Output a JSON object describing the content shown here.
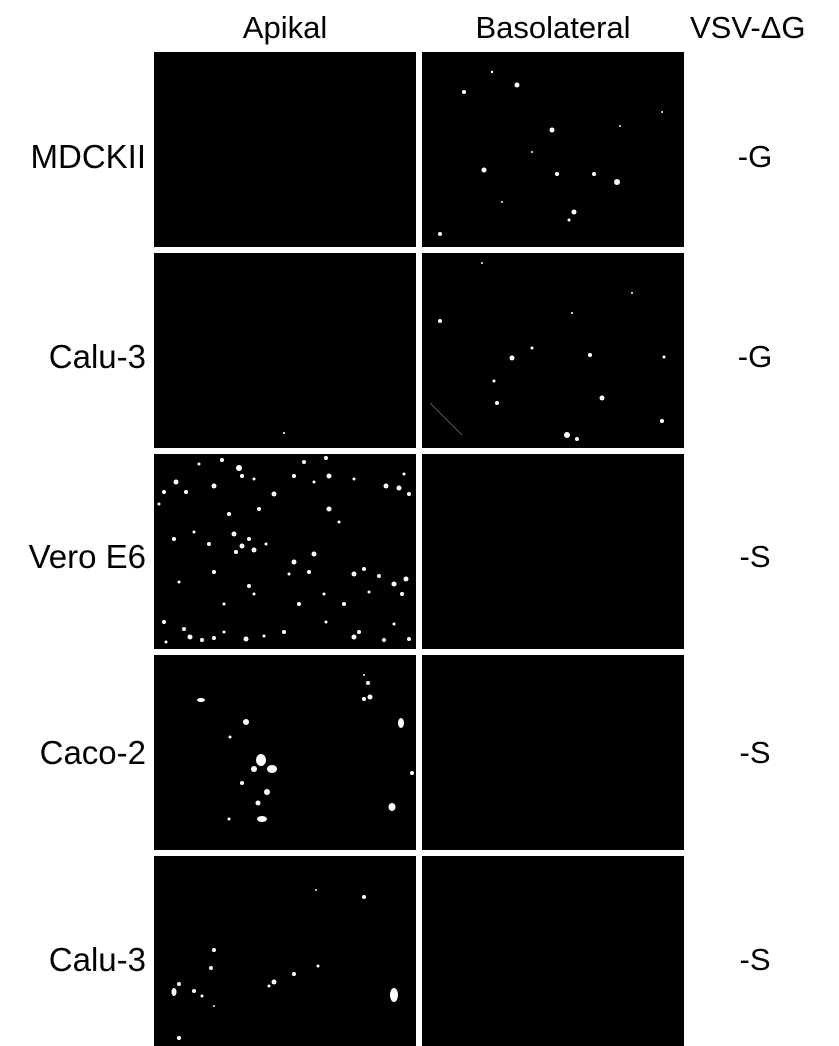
{
  "column_headers": {
    "apical": "Apikal",
    "basolateral": "Basolateral",
    "virus": "VSV-ΔG"
  },
  "rows": [
    {
      "cell_line": "MDCKII",
      "virus_variant": "-G",
      "apical_signal": "none",
      "basolateral_signal": "sparse"
    },
    {
      "cell_line": "Calu-3",
      "virus_variant": "-G",
      "apical_signal": "none",
      "basolateral_signal": "sparse"
    },
    {
      "cell_line": "Vero E6",
      "virus_variant": "-S",
      "apical_signal": "dense",
      "basolateral_signal": "none"
    },
    {
      "cell_line": "Caco-2",
      "virus_variant": "-S",
      "apical_signal": "moderate",
      "basolateral_signal": "none"
    },
    {
      "cell_line": "Calu-3",
      "virus_variant": "-S",
      "apical_signal": "sparse",
      "basolateral_signal": "none"
    }
  ],
  "colors": {
    "panel_background": "#000000",
    "signal": "#ffffff",
    "divider": "#ffffff"
  }
}
